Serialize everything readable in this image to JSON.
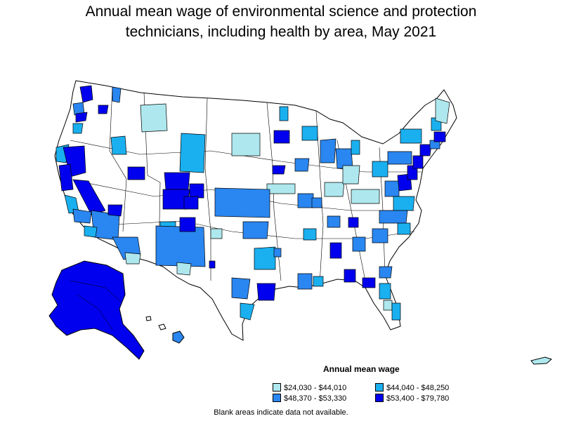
{
  "title": {
    "line1": "Annual mean wage of environmental science and protection",
    "line2": "technicians, including health by area, May 2021"
  },
  "legend": {
    "title": "Annual mean wage",
    "items": [
      {
        "label": "$24,030 - $44,010",
        "color": "#aee8ee"
      },
      {
        "label": "$44,040 - $48,250",
        "color": "#1ab0f0"
      },
      {
        "label": "$48,370 - $53,330",
        "color": "#2a86f0"
      },
      {
        "label": "$53,400 - $79,780",
        "color": "#0000ee"
      }
    ]
  },
  "footnote": "Blank areas indicate data not available.",
  "colors": {
    "outline": "#000000",
    "no_data": "#ffffff"
  }
}
